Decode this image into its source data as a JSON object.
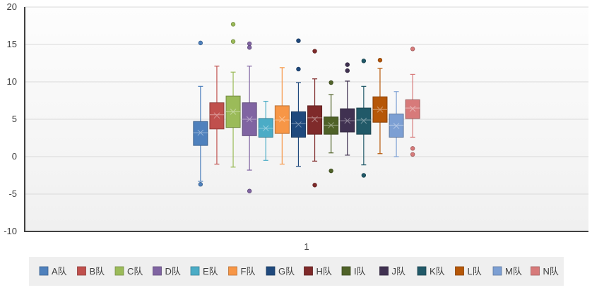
{
  "chart_data": {
    "type": "box",
    "title": "",
    "xlabel": "",
    "ylabel": "",
    "ylim": [
      -10,
      20
    ],
    "yticks": [
      -10,
      -5,
      0,
      5,
      10,
      15,
      20
    ],
    "categories": [
      "1"
    ],
    "grid": true,
    "legend_position": "bottom",
    "series": [
      {
        "name": "A队",
        "color": "#4f81bd",
        "min": -3.3,
        "q1": 1.5,
        "median": 3.2,
        "q3": 4.7,
        "max": 9.4,
        "mean": 3.2,
        "outliers": [
          15.2,
          -3.7
        ]
      },
      {
        "name": "B队",
        "color": "#c0504d",
        "min": -1.0,
        "q1": 3.7,
        "median": 5.6,
        "q3": 7.2,
        "max": 12.1,
        "mean": 5.5,
        "outliers": []
      },
      {
        "name": "C队",
        "color": "#9bbb59",
        "min": -1.4,
        "q1": 3.9,
        "median": 6.0,
        "q3": 8.1,
        "max": 11.3,
        "mean": 6.0,
        "outliers": [
          17.7,
          15.4
        ]
      },
      {
        "name": "D队",
        "color": "#8064a2",
        "min": -1.8,
        "q1": 2.8,
        "median": 5.0,
        "q3": 7.2,
        "max": 12.1,
        "mean": 5.0,
        "outliers": [
          15.1,
          14.6,
          -4.6
        ]
      },
      {
        "name": "E队",
        "color": "#4bacc6",
        "min": -0.5,
        "q1": 2.6,
        "median": 3.8,
        "q3": 5.1,
        "max": 7.4,
        "mean": 3.8,
        "outliers": []
      },
      {
        "name": "F队",
        "color": "#f79646",
        "min": -1.0,
        "q1": 3.1,
        "median": 4.9,
        "q3": 6.8,
        "max": 11.9,
        "mean": 5.0,
        "outliers": []
      },
      {
        "name": "G队",
        "color": "#1f497d",
        "min": -1.3,
        "q1": 2.6,
        "median": 4.4,
        "q3": 6.0,
        "max": 9.9,
        "mean": 4.3,
        "outliers": [
          15.5,
          11.7
        ]
      },
      {
        "name": "H队",
        "color": "#7f2a2a",
        "min": -0.6,
        "q1": 3.0,
        "median": 5.2,
        "q3": 6.8,
        "max": 10.4,
        "mean": 5.0,
        "outliers": [
          14.1,
          -3.8
        ]
      },
      {
        "name": "I队",
        "color": "#4f6228",
        "min": 0.5,
        "q1": 3.0,
        "median": 4.2,
        "q3": 5.3,
        "max": 8.3,
        "mean": 4.2,
        "outliers": [
          9.9,
          -1.9
        ]
      },
      {
        "name": "J队",
        "color": "#403151",
        "min": 0.2,
        "q1": 3.3,
        "median": 4.8,
        "q3": 6.4,
        "max": 10.1,
        "mean": 4.8,
        "outliers": [
          12.3,
          11.5
        ]
      },
      {
        "name": "K队",
        "color": "#215968",
        "min": -1.1,
        "q1": 3.0,
        "median": 4.9,
        "q3": 6.5,
        "max": 9.4,
        "mean": 4.8,
        "outliers": [
          12.8,
          -2.5
        ]
      },
      {
        "name": "L队",
        "color": "#b65708",
        "min": 0.4,
        "q1": 4.6,
        "median": 6.3,
        "q3": 8.0,
        "max": 11.8,
        "mean": 6.3,
        "outliers": [
          12.9
        ]
      },
      {
        "name": "M队",
        "color": "#7c9fd3",
        "min": 0.0,
        "q1": 2.6,
        "median": 4.2,
        "q3": 5.7,
        "max": 8.7,
        "mean": 4.1,
        "outliers": []
      },
      {
        "name": "N队",
        "color": "#d77a7a",
        "min": 2.6,
        "q1": 5.1,
        "median": 6.5,
        "q3": 7.6,
        "max": 11.0,
        "mean": 6.4,
        "outliers": [
          14.4,
          1.1,
          0.3
        ]
      }
    ]
  }
}
